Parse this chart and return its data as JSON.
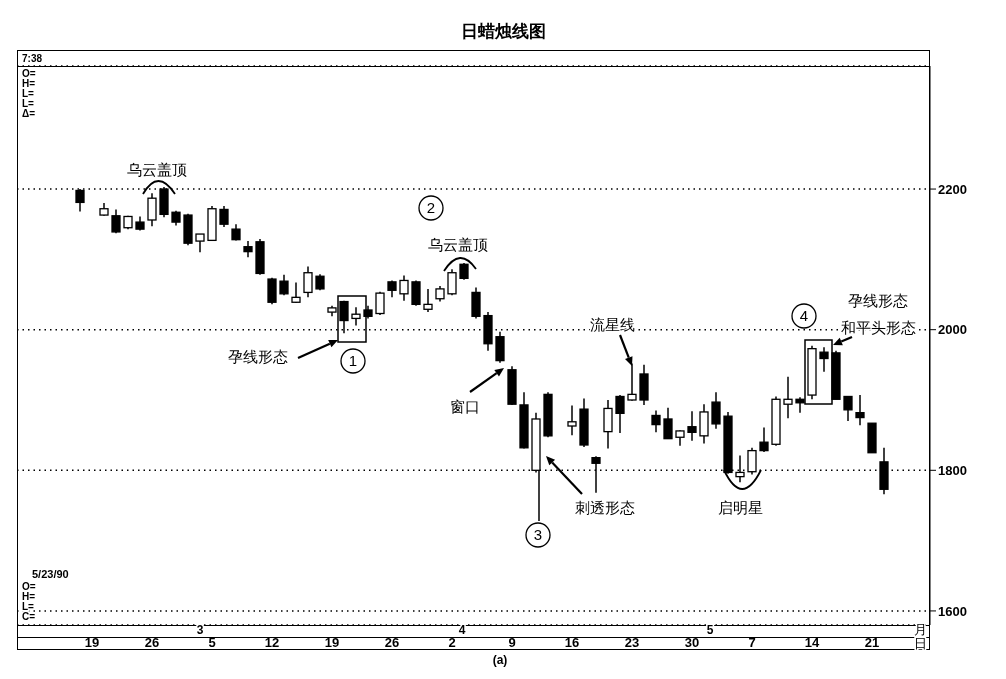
{
  "chart_data": {
    "type": "candlestick",
    "title": "日蜡烛线图",
    "color": "#000000",
    "categories": [
      null,
      "19",
      null,
      null,
      null,
      null,
      "26",
      null,
      null,
      null,
      null,
      "5",
      null,
      null,
      null,
      null,
      "12",
      null,
      null,
      null,
      null,
      "19",
      null,
      null,
      null,
      null,
      "26",
      null,
      null,
      null,
      null,
      "2",
      null,
      null,
      null,
      null,
      "9",
      null,
      null,
      null,
      null,
      "16",
      null,
      null,
      null,
      null,
      "23",
      null,
      null,
      null,
      null,
      "30",
      null,
      null,
      null,
      null,
      "7",
      null,
      null,
      null,
      null,
      "14",
      null,
      null,
      null,
      null,
      "21",
      null
    ],
    "ohlc": [
      [
        2198,
        2200,
        2168,
        2181
      ],
      null,
      [
        2163,
        2180,
        2162,
        2172
      ],
      [
        2162,
        2171,
        2137,
        2139
      ],
      [
        2145,
        2162,
        2143,
        2161
      ],
      [
        2153,
        2161,
        2141,
        2143
      ],
      [
        2156,
        2194,
        2147,
        2187
      ],
      [
        2200,
        2203,
        2160,
        2164
      ],
      [
        2167,
        2169,
        2148,
        2153
      ],
      [
        2163,
        2165,
        2120,
        2123
      ],
      [
        2126,
        2136,
        2110,
        2136
      ],
      [
        2127,
        2176,
        2126,
        2172
      ],
      [
        2171,
        2176,
        2146,
        2150
      ],
      [
        2143,
        2150,
        2127,
        2128
      ],
      [
        2118,
        2126,
        2103,
        2111
      ],
      [
        2125,
        2129,
        2078,
        2080
      ],
      [
        2072,
        2074,
        2036,
        2039
      ],
      [
        2069,
        2078,
        2049,
        2051
      ],
      [
        2039,
        2067,
        2038,
        2046
      ],
      [
        2053,
        2090,
        2046,
        2081
      ],
      [
        2076,
        2079,
        2056,
        2058
      ],
      [
        2025,
        2034,
        2019,
        2031
      ],
      [
        2040,
        2041,
        1995,
        2013
      ],
      [
        2016,
        2032,
        2006,
        2022
      ],
      [
        2028,
        2034,
        2016,
        2019
      ],
      [
        2023,
        2054,
        2021,
        2052
      ],
      [
        2068,
        2070,
        2046,
        2056
      ],
      [
        2051,
        2077,
        2041,
        2070
      ],
      [
        2068,
        2070,
        2034,
        2036
      ],
      [
        2029,
        2058,
        2025,
        2036
      ],
      [
        2044,
        2062,
        2040,
        2058
      ],
      [
        2051,
        2086,
        2049,
        2081
      ],
      [
        2093,
        2095,
        2071,
        2073
      ],
      [
        2053,
        2060,
        2016,
        2019
      ],
      [
        2020,
        2025,
        1970,
        1980
      ],
      [
        1990,
        1997,
        1953,
        1956
      ],
      [
        1943,
        1948,
        1893,
        1894
      ],
      [
        1893,
        1911,
        1831,
        1832
      ],
      [
        1800,
        1882,
        1797,
        1873
      ],
      [
        1908,
        1911,
        1847,
        1849
      ],
      null,
      [
        1863,
        1892,
        1850,
        1869
      ],
      [
        1887,
        1902,
        1833,
        1836
      ],
      [
        1818,
        1820,
        1768,
        1810
      ],
      [
        1855,
        1900,
        1831,
        1888
      ],
      [
        1905,
        1907,
        1853,
        1881
      ],
      [
        1900,
        1952,
        1899,
        1908
      ],
      [
        1937,
        1950,
        1893,
        1900
      ],
      [
        1878,
        1885,
        1854,
        1865
      ],
      [
        1873,
        1889,
        1845,
        1845
      ],
      [
        1847,
        1857,
        1835,
        1856
      ],
      [
        1862,
        1884,
        1842,
        1854
      ],
      [
        1849,
        1894,
        1838,
        1883
      ],
      [
        1897,
        1911,
        1859,
        1866
      ],
      [
        1877,
        1883,
        1795,
        1797
      ],
      [
        1791,
        1821,
        1783,
        1797
      ],
      [
        1798,
        1832,
        1794,
        1828
      ],
      [
        1840,
        1861,
        1826,
        1828
      ],
      [
        1837,
        1905,
        1835,
        1901
      ],
      [
        1894,
        1933,
        1874,
        1901
      ],
      [
        1901,
        1904,
        1882,
        1896
      ],
      [
        1907,
        1977,
        1901,
        1973
      ],
      [
        1968,
        1975,
        1940,
        1959
      ],
      [
        1967,
        1970,
        1901,
        1901
      ],
      [
        1905,
        1905,
        1870,
        1886
      ],
      [
        1882,
        1907,
        1864,
        1875
      ],
      [
        1867,
        1867,
        1825,
        1825
      ],
      [
        1812,
        1832,
        1766,
        1773
      ]
    ],
    "ylim": [
      1580,
      2375
    ],
    "yticks": [
      1600,
      1800,
      2000,
      2200
    ],
    "grid": "y",
    "annotations": [
      "7:38",
      "O=",
      "H=",
      "L=",
      "L=",
      "Δ=",
      "5/23/90",
      "O=",
      "H=",
      "L=",
      "C=",
      "3",
      "4",
      "5",
      "月",
      "日",
      "乌云盖顶",
      "乌云盖顶",
      "孕线形态",
      "1",
      "2",
      "窗口",
      {
        "text": "3",
        "y": 1800
      },
      "刺透形态",
      "流星线",
      "启明星",
      "4",
      "孕线形态",
      "和平头形态",
      "(a)"
    ]
  }
}
